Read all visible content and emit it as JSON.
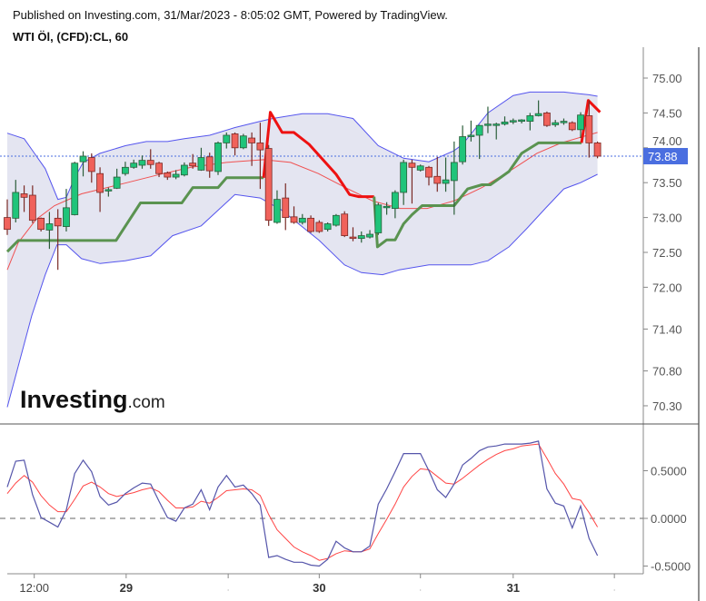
{
  "header": {
    "published": "Published on Investing.com, 31/Mar/2023 - 8:05:02 GMT, Powered by TradingView.",
    "symbol": "WTI Öl, (CFD):CL, 60"
  },
  "logo": {
    "text": "Investing",
    "suffix": ".com"
  },
  "colors": {
    "up": "#1fc47a",
    "down": "#f0625b",
    "up_border": "#2b5e3a",
    "down_border": "#7a2a26",
    "band_fill": "#e4e5f1",
    "band_line": "#5555ee",
    "basis": "#f05050",
    "supertrend_up": "#5a9350",
    "supertrend_down": "#ee1111",
    "osc_main": "#5555aa",
    "osc_signal": "#ff4444",
    "price_label": "#4a6ee0"
  },
  "chart_data": [
    {
      "type": "candlestick",
      "interval": "60",
      "current_price": "73.88",
      "y_ticks": [
        "75.00",
        "74.50",
        "74.00",
        "73.50",
        "73.00",
        "72.50",
        "72.00",
        "71.40",
        "70.80",
        "70.30"
      ],
      "x_ticks": [
        {
          "label": "12:00",
          "bold": false,
          "index": 3.2
        },
        {
          "label": "29",
          "bold": true,
          "index": 14.1
        },
        {
          "label": "",
          "bold": false,
          "index": 26.2
        },
        {
          "label": "30",
          "bold": true,
          "index": 37
        },
        {
          "label": "",
          "bold": false,
          "index": 49
        },
        {
          "label": "31",
          "bold": true,
          "index": 60
        },
        {
          "label": "",
          "bold": false,
          "index": 72
        }
      ],
      "ohlc": [
        [
          73.0,
          73.26,
          72.75,
          72.83
        ],
        [
          72.99,
          73.54,
          72.93,
          73.36
        ],
        [
          73.34,
          73.46,
          73.08,
          73.29
        ],
        [
          73.32,
          73.46,
          72.92,
          72.96
        ],
        [
          72.99,
          73.0,
          72.8,
          72.83
        ],
        [
          72.82,
          73.08,
          72.55,
          72.91
        ],
        [
          72.99,
          73.12,
          72.25,
          72.88
        ],
        [
          72.87,
          73.41,
          72.8,
          73.14
        ],
        [
          73.04,
          73.8,
          73.03,
          73.78
        ],
        [
          73.8,
          73.95,
          73.59,
          73.88
        ],
        [
          73.86,
          73.92,
          73.5,
          73.66
        ],
        [
          73.63,
          73.72,
          73.08,
          73.36
        ],
        [
          73.39,
          73.43,
          73.3,
          73.4
        ],
        [
          73.42,
          73.7,
          73.41,
          73.58
        ],
        [
          73.63,
          73.8,
          73.6,
          73.72
        ],
        [
          73.72,
          73.83,
          73.7,
          73.78
        ],
        [
          73.75,
          73.89,
          73.7,
          73.82
        ],
        [
          73.82,
          73.98,
          73.7,
          73.76
        ],
        [
          73.78,
          73.8,
          73.58,
          73.63
        ],
        [
          73.64,
          73.66,
          73.54,
          73.58
        ],
        [
          73.58,
          73.68,
          73.55,
          73.62
        ],
        [
          73.61,
          73.79,
          73.59,
          73.75
        ],
        [
          73.78,
          73.91,
          73.7,
          73.74
        ],
        [
          73.68,
          74.0,
          73.67,
          73.86
        ],
        [
          73.87,
          73.93,
          73.57,
          73.67
        ],
        [
          73.66,
          74.09,
          73.61,
          74.07
        ],
        [
          74.07,
          74.22,
          73.99,
          74.18
        ],
        [
          74.2,
          74.22,
          73.89,
          74.0
        ],
        [
          74.0,
          74.2,
          73.98,
          74.17
        ],
        [
          74.14,
          74.22,
          73.74,
          74.07
        ],
        [
          74.07,
          74.36,
          73.41,
          73.97
        ],
        [
          73.99,
          74.04,
          72.88,
          72.96
        ],
        [
          72.93,
          73.39,
          72.91,
          73.26
        ],
        [
          73.28,
          73.49,
          72.82,
          73.0
        ],
        [
          73.01,
          73.16,
          72.91,
          72.93
        ],
        [
          72.93,
          73.05,
          72.9,
          72.99
        ],
        [
          72.99,
          73.03,
          72.78,
          72.8
        ],
        [
          72.93,
          72.96,
          72.78,
          72.8
        ],
        [
          72.83,
          72.93,
          72.8,
          72.91
        ],
        [
          72.89,
          73.05,
          72.87,
          73.03
        ],
        [
          73.05,
          73.09,
          72.72,
          72.74
        ],
        [
          72.72,
          72.86,
          72.66,
          72.7
        ],
        [
          72.7,
          72.8,
          72.64,
          72.74
        ],
        [
          72.72,
          72.82,
          72.7,
          72.76
        ],
        [
          72.78,
          73.21,
          72.75,
          73.18
        ],
        [
          73.16,
          73.22,
          73.04,
          73.16
        ],
        [
          73.13,
          73.39,
          72.99,
          73.36
        ],
        [
          73.36,
          73.83,
          73.18,
          73.79
        ],
        [
          73.78,
          73.83,
          73.2,
          73.72
        ],
        [
          73.68,
          73.76,
          73.66,
          73.74
        ],
        [
          73.72,
          73.74,
          73.46,
          73.58
        ],
        [
          73.59,
          73.87,
          73.37,
          73.49
        ],
        [
          73.49,
          73.86,
          73.37,
          73.54
        ],
        [
          73.53,
          74.09,
          73.04,
          73.79
        ],
        [
          73.8,
          74.32,
          73.76,
          74.16
        ],
        [
          74.18,
          74.39,
          74.09,
          74.18
        ],
        [
          74.18,
          74.33,
          73.84,
          74.32
        ],
        [
          74.34,
          74.59,
          74.21,
          74.34
        ],
        [
          74.34,
          74.36,
          74.12,
          74.34
        ],
        [
          74.34,
          74.45,
          74.32,
          74.37
        ],
        [
          74.37,
          74.42,
          74.34,
          74.39
        ],
        [
          74.38,
          74.41,
          74.35,
          74.4
        ],
        [
          74.38,
          74.5,
          74.25,
          74.46
        ],
        [
          74.46,
          74.68,
          74.45,
          74.49
        ],
        [
          74.5,
          74.52,
          74.3,
          74.32
        ],
        [
          74.33,
          74.4,
          74.3,
          74.36
        ],
        [
          74.36,
          74.42,
          74.33,
          74.38
        ],
        [
          74.36,
          74.38,
          74.24,
          74.26
        ],
        [
          74.26,
          74.51,
          74.14,
          74.47
        ],
        [
          74.46,
          74.68,
          73.86,
          74.07
        ],
        [
          74.07,
          74.09,
          73.85,
          73.88
        ]
      ],
      "bollinger_upper": [
        [
          0,
          74.21
        ],
        [
          2,
          74.13
        ],
        [
          3,
          73.96
        ],
        [
          4.5,
          73.7
        ],
        [
          6,
          73.26
        ],
        [
          7,
          73.29
        ],
        [
          8,
          73.57
        ],
        [
          9,
          73.79
        ],
        [
          11,
          73.92
        ],
        [
          14,
          74.03
        ],
        [
          16.5,
          74.09
        ],
        [
          19,
          74.09
        ],
        [
          21,
          74.13
        ],
        [
          24,
          74.18
        ],
        [
          27,
          74.29
        ],
        [
          30,
          74.38
        ],
        [
          31.5,
          74.42
        ],
        [
          35,
          74.49
        ],
        [
          38,
          74.49
        ],
        [
          41,
          74.42
        ],
        [
          44,
          74.03
        ],
        [
          47,
          73.85
        ],
        [
          50,
          73.8
        ],
        [
          53,
          73.96
        ],
        [
          54,
          74.05
        ],
        [
          57,
          74.5
        ],
        [
          60,
          74.75
        ],
        [
          62,
          74.8
        ],
        [
          66,
          74.8
        ],
        [
          69,
          74.76
        ],
        [
          70,
          74.74
        ]
      ],
      "bollinger_lower": [
        [
          0,
          70.28
        ],
        [
          1.3,
          70.87
        ],
        [
          2.9,
          71.59
        ],
        [
          4.5,
          72.18
        ],
        [
          5.9,
          72.61
        ],
        [
          7,
          72.61
        ],
        [
          8.8,
          72.41
        ],
        [
          11,
          72.34
        ],
        [
          14,
          72.38
        ],
        [
          17,
          72.45
        ],
        [
          19.6,
          72.74
        ],
        [
          23,
          72.88
        ],
        [
          27,
          73.33
        ],
        [
          30,
          73.28
        ],
        [
          32.5,
          73.11
        ],
        [
          37,
          72.67
        ],
        [
          40,
          72.32
        ],
        [
          42,
          72.21
        ],
        [
          44.5,
          72.18
        ],
        [
          46.5,
          72.25
        ],
        [
          50,
          72.32
        ],
        [
          55,
          72.32
        ],
        [
          57,
          72.38
        ],
        [
          59.5,
          72.58
        ],
        [
          61.6,
          72.84
        ],
        [
          63.8,
          73.13
        ],
        [
          66,
          73.41
        ],
        [
          68,
          73.5
        ],
        [
          70,
          73.62
        ]
      ],
      "bollinger_basis": [
        [
          0,
          72.25
        ],
        [
          1.3,
          72.64
        ],
        [
          3.4,
          72.97
        ],
        [
          5.6,
          73.17
        ],
        [
          8.8,
          73.34
        ],
        [
          14.2,
          73.5
        ],
        [
          18.5,
          73.63
        ],
        [
          21.8,
          73.72
        ],
        [
          26,
          73.79
        ],
        [
          30.4,
          73.83
        ],
        [
          33.6,
          73.79
        ],
        [
          36.9,
          73.63
        ],
        [
          40.1,
          73.43
        ],
        [
          43.3,
          73.24
        ],
        [
          46.6,
          73.13
        ],
        [
          49.8,
          73.13
        ],
        [
          53,
          73.24
        ],
        [
          56.3,
          73.43
        ],
        [
          59.5,
          73.66
        ],
        [
          62.8,
          73.92
        ],
        [
          65.7,
          74.07
        ],
        [
          70,
          74.22
        ]
      ],
      "supertrend": [
        {
          "direction": "up",
          "points": [
            [
              0,
              72.51
            ],
            [
              1.3,
              72.67
            ],
            [
              12.9,
              72.67
            ],
            [
              15.8,
              73.21
            ],
            [
              20.7,
              73.21
            ],
            [
              22,
              73.43
            ],
            [
              25,
              73.43
            ],
            [
              26,
              73.57
            ],
            [
              30.4,
              73.57
            ]
          ]
        },
        {
          "direction": "down",
          "points": [
            [
              30.4,
              73.57
            ],
            [
              31.2,
              74.51
            ],
            [
              32.6,
              74.22
            ],
            [
              34,
              74.22
            ],
            [
              35.8,
              74.05
            ],
            [
              39,
              73.62
            ],
            [
              40.6,
              73.33
            ],
            [
              41.7,
              73.3
            ],
            [
              43.5,
              73.3
            ]
          ]
        },
        {
          "direction": "up",
          "points": [
            [
              43.5,
              73.3
            ],
            [
              43.9,
              72.58
            ],
            [
              45,
              72.68
            ],
            [
              46,
              72.68
            ],
            [
              47,
              72.91
            ],
            [
              48,
              73.04
            ],
            [
              49.2,
              73.17
            ],
            [
              53,
              73.17
            ],
            [
              54.6,
              73.41
            ],
            [
              56.3,
              73.47
            ],
            [
              57.3,
              73.47
            ],
            [
              59.5,
              73.66
            ],
            [
              61,
              73.92
            ],
            [
              63,
              74.07
            ],
            [
              68.1,
              74.07
            ]
          ]
        },
        {
          "direction": "down",
          "points": [
            [
              68.1,
              74.07
            ],
            [
              68.9,
              74.68
            ],
            [
              70.3,
              74.51
            ]
          ]
        }
      ]
    },
    {
      "type": "line",
      "y_ticks": [
        "0.5000",
        "0.0000",
        "-0.5000"
      ],
      "zero_line": true,
      "series_main": [
        0.33,
        0.6,
        0.61,
        0.25,
        0.01,
        -0.04,
        -0.09,
        0.09,
        0.47,
        0.61,
        0.49,
        0.23,
        0.14,
        0.17,
        0.26,
        0.32,
        0.37,
        0.36,
        0.18,
        0.01,
        -0.03,
        0.11,
        0.15,
        0.3,
        0.09,
        0.33,
        0.45,
        0.33,
        0.35,
        0.26,
        0.14,
        -0.41,
        -0.39,
        -0.43,
        -0.46,
        -0.46,
        -0.49,
        -0.5,
        -0.43,
        -0.24,
        -0.31,
        -0.35,
        -0.35,
        -0.29,
        0.15,
        0.31,
        0.49,
        0.68,
        0.68,
        0.68,
        0.5,
        0.3,
        0.22,
        0.36,
        0.56,
        0.63,
        0.71,
        0.75,
        0.76,
        0.78,
        0.78,
        0.78,
        0.79,
        0.81,
        0.31,
        0.16,
        0.13,
        -0.1,
        0.13,
        -0.21,
        -0.39
      ],
      "series_signal": [
        0.26,
        0.37,
        0.45,
        0.38,
        0.24,
        0.14,
        0.07,
        0.07,
        0.2,
        0.34,
        0.38,
        0.33,
        0.26,
        0.23,
        0.25,
        0.27,
        0.3,
        0.32,
        0.28,
        0.19,
        0.11,
        0.11,
        0.12,
        0.18,
        0.16,
        0.22,
        0.29,
        0.3,
        0.31,
        0.3,
        0.24,
        0.04,
        -0.12,
        -0.21,
        -0.3,
        -0.35,
        -0.39,
        -0.44,
        -0.42,
        -0.37,
        -0.34,
        -0.35,
        -0.35,
        -0.32,
        -0.16,
        -0.01,
        0.15,
        0.33,
        0.44,
        0.52,
        0.51,
        0.44,
        0.37,
        0.36,
        0.42,
        0.49,
        0.56,
        0.62,
        0.67,
        0.71,
        0.73,
        0.76,
        0.77,
        0.78,
        0.63,
        0.47,
        0.36,
        0.21,
        0.19,
        0.06,
        -0.09
      ]
    }
  ]
}
